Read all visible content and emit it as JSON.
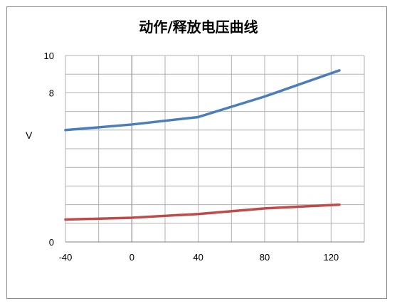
{
  "chart_data": {
    "type": "line",
    "title": "动作/释放电压曲线",
    "xlabel": "",
    "ylabel": "V",
    "xlim": [
      -40,
      140
    ],
    "ylim": [
      0,
      10
    ],
    "xticks": [
      "-40",
      "0",
      "40",
      "80",
      "120"
    ],
    "yticks_labeled": [
      "0",
      "8",
      "10"
    ],
    "grid": true,
    "series": [
      {
        "color": "#4a7ebb",
        "x": [
          -40,
          0,
          40,
          80,
          125
        ],
        "y": [
          6.0,
          6.3,
          6.7,
          7.8,
          9.2
        ]
      },
      {
        "color": "#be4b48",
        "x": [
          -40,
          0,
          40,
          80,
          125
        ],
        "y": [
          1.2,
          1.3,
          1.5,
          1.8,
          2.0
        ]
      }
    ]
  }
}
